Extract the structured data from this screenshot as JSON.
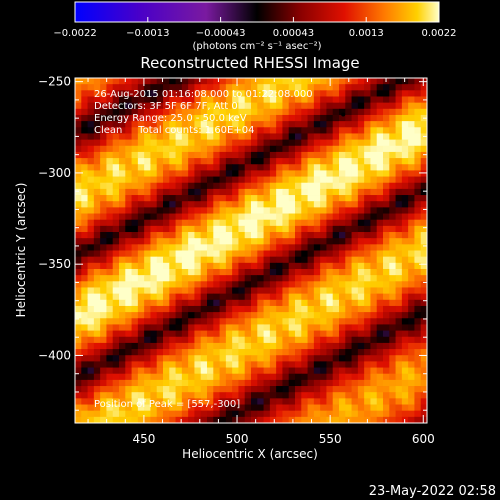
{
  "chart_data": {
    "type": "heatmap",
    "title": "Reconstructed RHESSI Image",
    "xlabel": "Heliocentric X (arcsec)",
    "ylabel": "Heliocentric Y (arcsec)",
    "xlim": [
      413,
      602
    ],
    "ylim": [
      -437,
      -248
    ],
    "x_ticks": [
      450,
      500,
      550,
      600
    ],
    "y_ticks": [
      -250,
      -300,
      -350,
      -400
    ],
    "colorbar": {
      "label": "(photons cm⁻² s⁻¹ asec⁻²)",
      "range": [
        -0.0022,
        0.0022
      ],
      "tick_labels": [
        "-0.0022",
        "-0.0013",
        "-0.00043",
        "0.00043",
        "0.0013",
        "0.0022"
      ],
      "colormap": [
        "#0000ff",
        "#4a00c8",
        "#7a1aa0",
        "#000000",
        "#8a0000",
        "#e01000",
        "#ff7a00",
        "#ffd000",
        "#ffffc8"
      ]
    },
    "annotations": {
      "time": "26-Aug-2015 01:16:08.000 to 01:22:08.000",
      "detectors": "Detectors: 3F 5F 6F 7F, Att 0",
      "energy": "Energy Range: 25.0 - 50.0 keV",
      "clean": "Clean     Total counts: 1.60E+04",
      "peak": "Position of Peak = [557,-300]"
    },
    "peak": {
      "x": 557,
      "y": -300
    },
    "stripe_offsets_arcsec": [
      -134,
      -67,
      0,
      67,
      134
    ],
    "stripe_slope": 0.55
  },
  "timestamp": "23-May-2022 02:58"
}
